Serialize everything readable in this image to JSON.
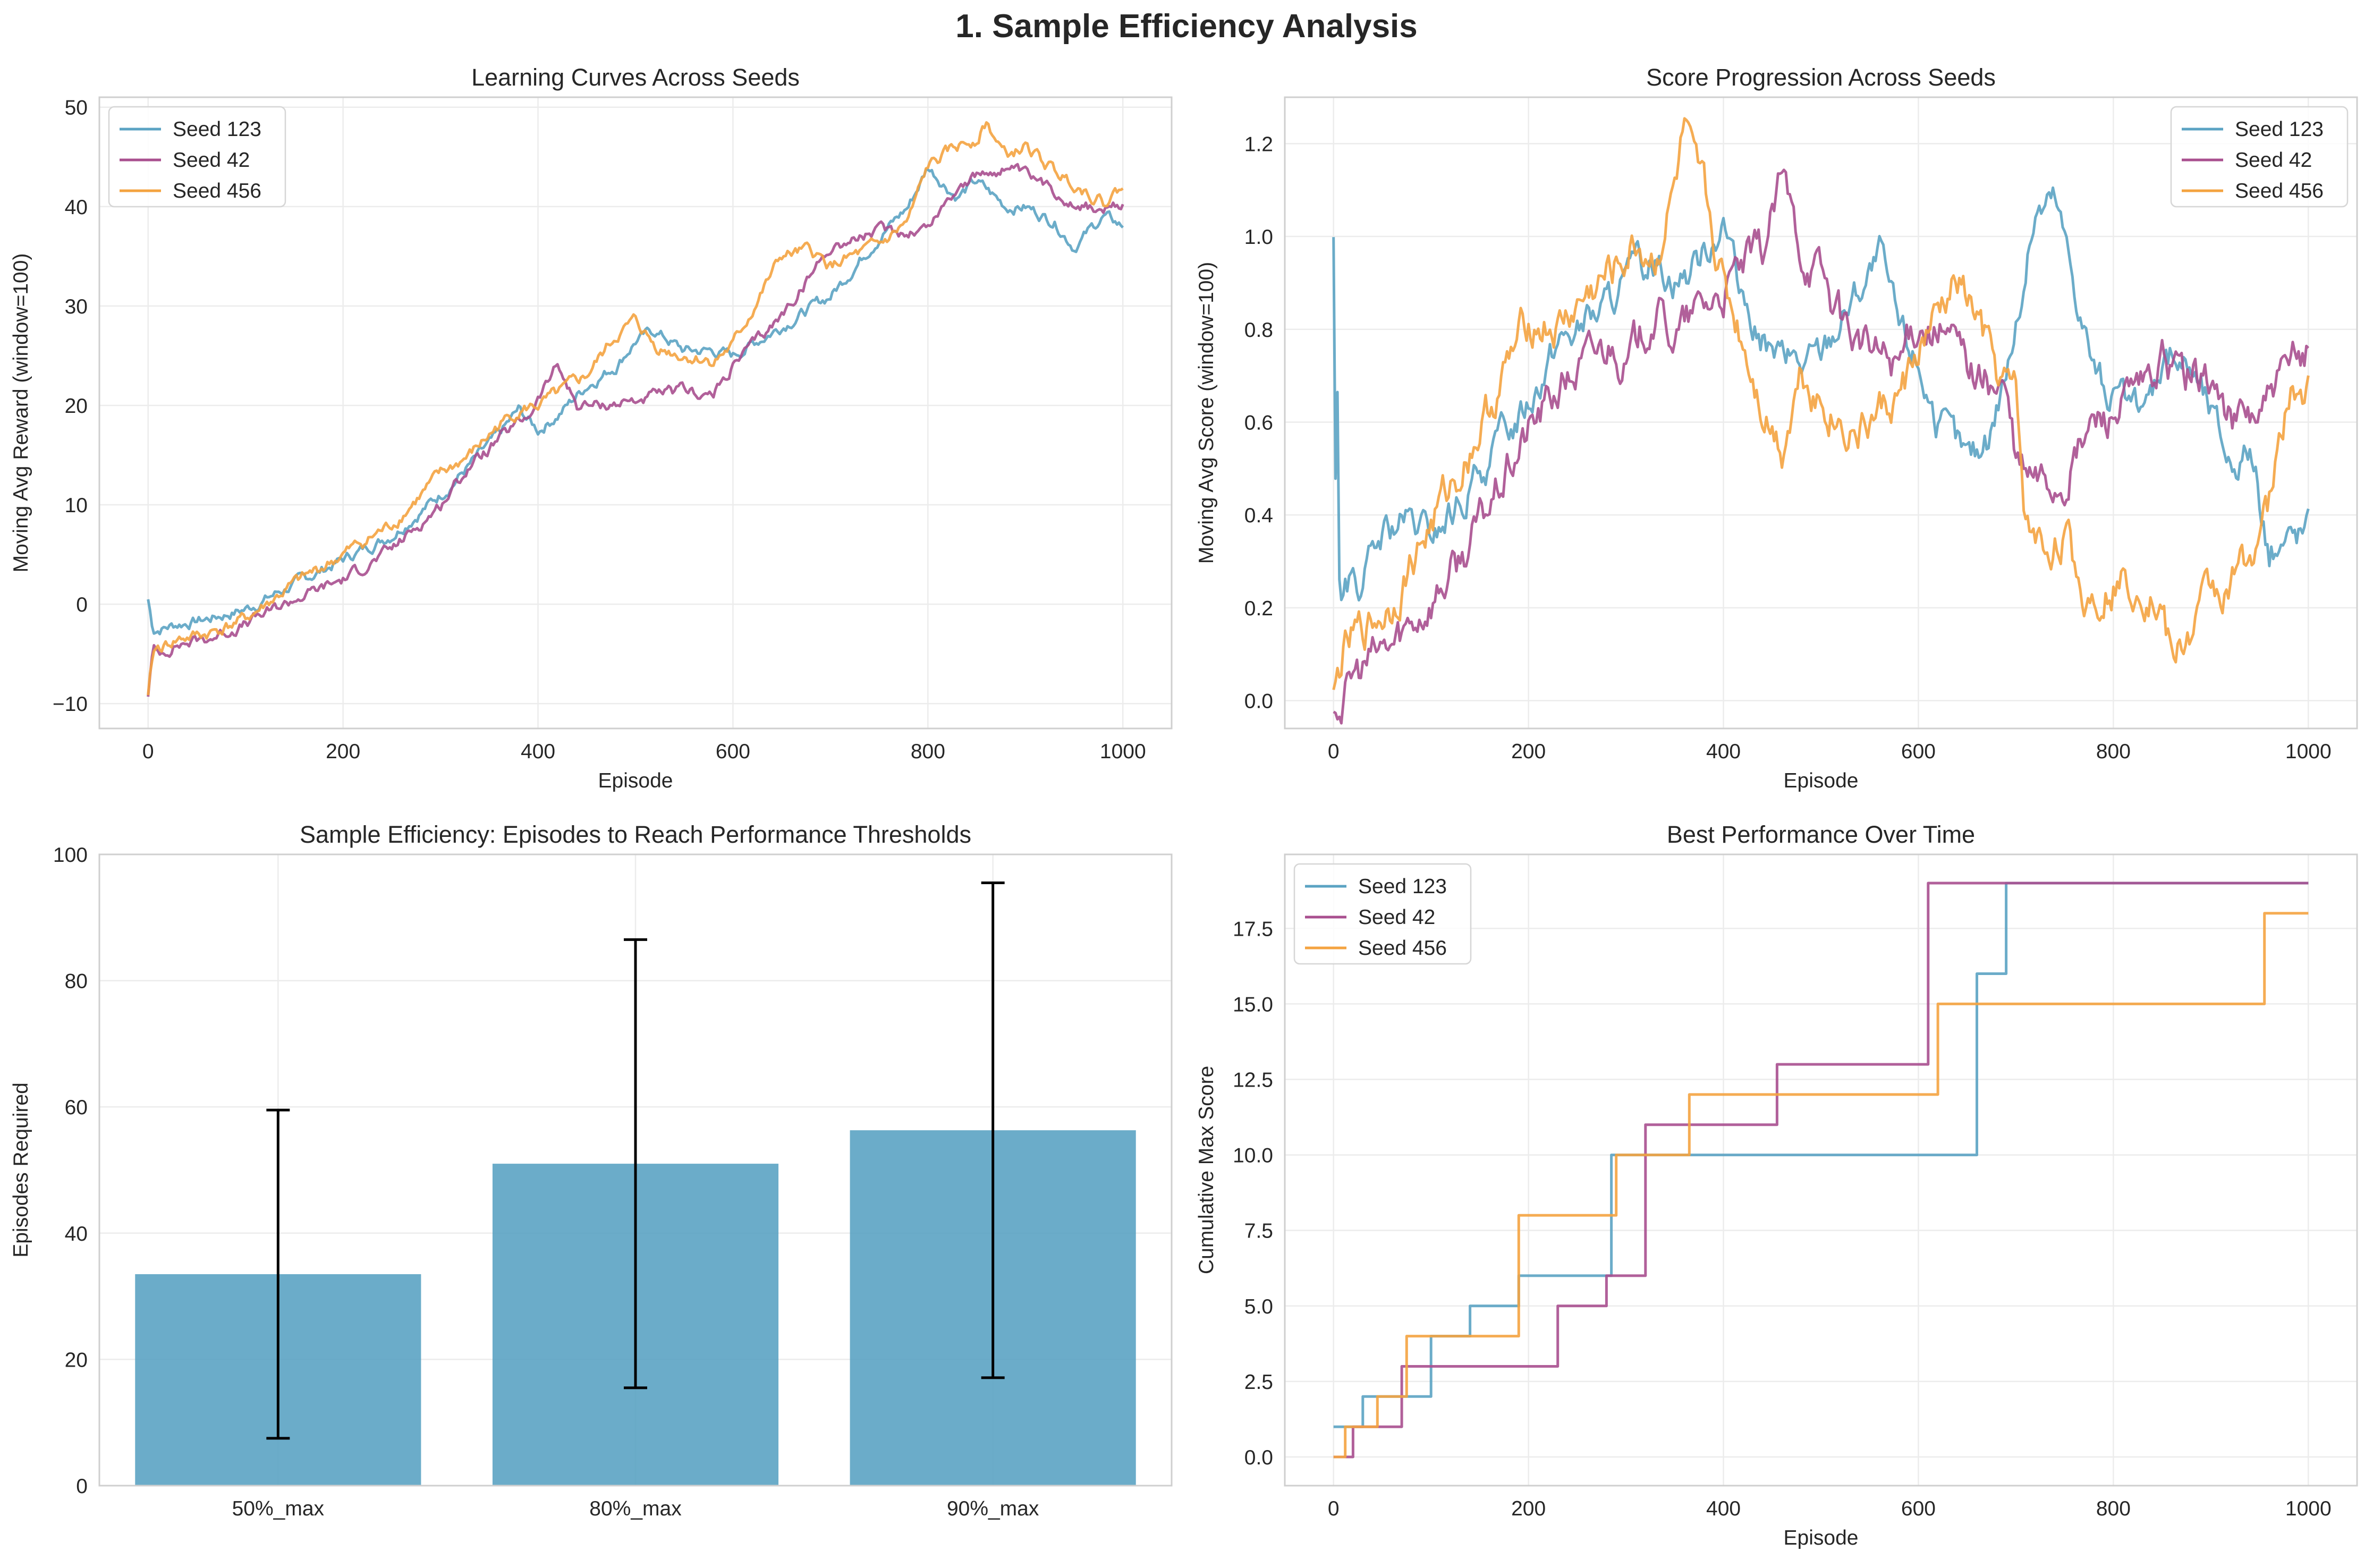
{
  "suptitle": "1. Sample Efficiency Analysis",
  "colors": {
    "seed123": "#5ba3c3",
    "seed42": "#a94f8f",
    "seed456": "#f4a340",
    "grid": "#ececec",
    "axis": "#cfcfcf",
    "text": "#262626",
    "bar": "#5ba3c3",
    "errorbar": "#000000"
  },
  "chart_data": [
    {
      "id": "learning",
      "type": "line",
      "title": "Learning Curves Across Seeds",
      "xlabel": "Episode",
      "ylabel": "Moving Avg Reward (window=100)",
      "xlim": [
        -50,
        1050
      ],
      "ylim": [
        -12.5,
        51
      ],
      "xticks": [
        0,
        200,
        400,
        600,
        800,
        1000
      ],
      "yticks": [
        -10,
        0,
        10,
        20,
        30,
        40,
        50
      ],
      "ytick_labels": [
        "−10",
        "0",
        "10",
        "20",
        "30",
        "40",
        "50"
      ],
      "grid": true,
      "legend": "upper-left",
      "series": [
        {
          "name": "Seed 123",
          "color_key": "seed123",
          "noise": 0.45,
          "x": [
            0,
            5,
            10,
            30,
            60,
            100,
            150,
            200,
            250,
            300,
            330,
            360,
            380,
            400,
            420,
            450,
            480,
            500,
            520,
            550,
            580,
            600,
            650,
            700,
            750,
            780,
            800,
            830,
            850,
            880,
            900,
            930,
            950,
            980,
            1000
          ],
          "y": [
            0.5,
            -2.5,
            -2.5,
            -2.0,
            -1.5,
            -0.5,
            2,
            4.5,
            7,
            11,
            14,
            17,
            19.5,
            17.5,
            19,
            22,
            24,
            26.5,
            27.5,
            25.5,
            25.5,
            25,
            28,
            31,
            37,
            40,
            44,
            41,
            42.5,
            40,
            40,
            38.5,
            36,
            39,
            38
          ]
        },
        {
          "name": "Seed 42",
          "color_key": "seed42",
          "noise": 0.45,
          "x": [
            0,
            5,
            10,
            30,
            60,
            100,
            150,
            200,
            250,
            300,
            330,
            360,
            390,
            420,
            440,
            460,
            500,
            550,
            580,
            600,
            650,
            700,
            750,
            780,
            800,
            830,
            850,
            880,
            900,
            930,
            950,
            980,
            1000
          ],
          "y": [
            -9,
            -4.5,
            -5,
            -4,
            -3.5,
            -2,
            0.5,
            2.5,
            5.5,
            10,
            14,
            16.5,
            19,
            24,
            20,
            20,
            20.5,
            21.5,
            21,
            24,
            29,
            36,
            37.5,
            37.5,
            38,
            42,
            43,
            44,
            43,
            41.5,
            40.5,
            39.5,
            40
          ]
        },
        {
          "name": "Seed 456",
          "color_key": "seed456",
          "noise": 0.5,
          "x": [
            0,
            5,
            10,
            30,
            60,
            100,
            150,
            200,
            250,
            300,
            330,
            360,
            380,
            400,
            420,
            450,
            480,
            500,
            520,
            550,
            580,
            600,
            650,
            680,
            700,
            750,
            780,
            800,
            830,
            850,
            860,
            880,
            900,
            930,
            950,
            980,
            1000
          ],
          "y": [
            -9.5,
            -5,
            -4.5,
            -3.5,
            -3,
            -1.5,
            2,
            5,
            8,
            13,
            15,
            18,
            19.5,
            20,
            21,
            23,
            27,
            28.5,
            26,
            25,
            24.5,
            26,
            35,
            35.5,
            34,
            36,
            38.5,
            44,
            46,
            47,
            48.5,
            45,
            46,
            43.5,
            42.5,
            40.5,
            42
          ]
        }
      ]
    },
    {
      "id": "score",
      "type": "line",
      "title": "Score Progression Across Seeds",
      "xlabel": "Episode",
      "ylabel": "Moving Avg Score (window=100)",
      "xlim": [
        -50,
        1050
      ],
      "ylim": [
        -0.06,
        1.3
      ],
      "xticks": [
        0,
        200,
        400,
        600,
        800,
        1000
      ],
      "yticks": [
        0.0,
        0.2,
        0.4,
        0.6,
        0.8,
        1.0,
        1.2
      ],
      "ytick_labels": [
        "0.0",
        "0.2",
        "0.4",
        "0.6",
        "0.8",
        "1.0",
        "1.2"
      ],
      "grid": true,
      "legend": "upper-right",
      "series": [
        {
          "name": "Seed 123",
          "color_key": "seed123",
          "noise": 0.03,
          "x": [
            0,
            2,
            4,
            6,
            10,
            20,
            30,
            50,
            70,
            100,
            130,
            160,
            200,
            230,
            250,
            280,
            300,
            330,
            350,
            370,
            400,
            420,
            450,
            480,
            500,
            530,
            560,
            580,
            600,
            620,
            650,
            670,
            700,
            720,
            740,
            760,
            780,
            800,
            830,
            850,
            880,
            900,
            920,
            940,
            960,
            980,
            1000
          ],
          "y": [
            1.0,
            0.5,
            0.67,
            0.25,
            0.22,
            0.26,
            0.25,
            0.35,
            0.38,
            0.35,
            0.42,
            0.52,
            0.65,
            0.78,
            0.8,
            0.85,
            0.9,
            0.95,
            0.92,
            0.93,
            1.05,
            0.83,
            0.75,
            0.72,
            0.75,
            0.86,
            0.95,
            0.8,
            0.73,
            0.6,
            0.52,
            0.55,
            0.8,
            1.05,
            1.08,
            0.9,
            0.72,
            0.65,
            0.6,
            0.75,
            0.72,
            0.62,
            0.52,
            0.55,
            0.32,
            0.35,
            0.37
          ]
        },
        {
          "name": "Seed 42",
          "color_key": "seed42",
          "noise": 0.035,
          "x": [
            0,
            10,
            20,
            40,
            60,
            80,
            100,
            130,
            160,
            200,
            230,
            260,
            290,
            300,
            330,
            350,
            380,
            400,
            420,
            440,
            460,
            480,
            500,
            520,
            550,
            580,
            600,
            630,
            660,
            690,
            700,
            720,
            750,
            780,
            800,
            830,
            850,
            880,
            900,
            920,
            950,
            980,
            1000
          ],
          "y": [
            0.0,
            0.0,
            0.05,
            0.09,
            0.12,
            0.17,
            0.22,
            0.3,
            0.42,
            0.58,
            0.67,
            0.73,
            0.78,
            0.72,
            0.84,
            0.78,
            0.85,
            0.88,
            0.93,
            0.96,
            1.12,
            0.97,
            0.92,
            0.82,
            0.75,
            0.73,
            0.82,
            0.78,
            0.7,
            0.66,
            0.5,
            0.47,
            0.47,
            0.6,
            0.62,
            0.66,
            0.72,
            0.7,
            0.69,
            0.6,
            0.62,
            0.7,
            0.76
          ]
        },
        {
          "name": "Seed 456",
          "color_key": "seed456",
          "noise": 0.035,
          "x": [
            0,
            10,
            20,
            40,
            60,
            80,
            100,
            130,
            160,
            200,
            230,
            260,
            290,
            310,
            330,
            350,
            360,
            370,
            380,
            400,
            420,
            440,
            460,
            480,
            500,
            520,
            540,
            560,
            580,
            600,
            620,
            640,
            660,
            680,
            700,
            710,
            730,
            750,
            770,
            790,
            800,
            830,
            850,
            860,
            880,
            900,
            920,
            940,
            960,
            980,
            1000
          ],
          "y": [
            0.0,
            0.1,
            0.13,
            0.17,
            0.21,
            0.3,
            0.38,
            0.5,
            0.63,
            0.82,
            0.8,
            0.87,
            0.93,
            0.98,
            0.95,
            1.1,
            1.22,
            1.12,
            1.08,
            0.9,
            0.78,
            0.64,
            0.55,
            0.72,
            0.65,
            0.6,
            0.58,
            0.62,
            0.65,
            0.75,
            0.82,
            0.9,
            0.82,
            0.7,
            0.65,
            0.38,
            0.32,
            0.36,
            0.22,
            0.25,
            0.26,
            0.26,
            0.2,
            0.08,
            0.15,
            0.24,
            0.24,
            0.32,
            0.42,
            0.66,
            0.66
          ]
        }
      ]
    },
    {
      "id": "bars",
      "type": "bar",
      "title": "Sample Efficiency: Episodes to Reach Performance Thresholds",
      "xlabel": "",
      "ylabel": "Episodes Required",
      "categories": [
        "50%_max",
        "80%_max",
        "90%_max"
      ],
      "values": [
        33.5,
        51.0,
        56.3
      ],
      "errors": [
        26.0,
        35.5,
        39.2
      ],
      "ylim": [
        0,
        100
      ],
      "yticks": [
        0,
        20,
        40,
        60,
        80,
        100
      ],
      "ytick_labels": [
        "0",
        "20",
        "40",
        "60",
        "80",
        "100"
      ],
      "grid": true
    },
    {
      "id": "best",
      "type": "line",
      "title": "Best Performance Over Time",
      "xlabel": "Episode",
      "ylabel": "Cumulative Max Score",
      "xlim": [
        -50,
        1050
      ],
      "ylim": [
        -0.95,
        19.95
      ],
      "xticks": [
        0,
        200,
        400,
        600,
        800,
        1000
      ],
      "yticks": [
        0.0,
        2.5,
        5.0,
        7.5,
        10.0,
        12.5,
        15.0,
        17.5
      ],
      "ytick_labels": [
        "0.0",
        "2.5",
        "5.0",
        "7.5",
        "10.0",
        "12.5",
        "15.0",
        "17.5"
      ],
      "grid": true,
      "legend": "upper-left",
      "step": true,
      "series": [
        {
          "name": "Seed 123",
          "color_key": "seed123",
          "x": [
            0,
            15,
            30,
            100,
            140,
            190,
            285,
            660,
            690,
            1000
          ],
          "y": [
            1,
            1,
            2,
            4,
            5,
            6,
            10,
            16,
            19,
            19
          ]
        },
        {
          "name": "Seed 42",
          "color_key": "seed42",
          "x": [
            0,
            20,
            30,
            70,
            230,
            280,
            320,
            455,
            610,
            615,
            1000
          ],
          "y": [
            0,
            1,
            1,
            3,
            5,
            6,
            11,
            13,
            19,
            19,
            19
          ]
        },
        {
          "name": "Seed 456",
          "color_key": "seed456",
          "x": [
            0,
            12,
            45,
            75,
            190,
            290,
            365,
            620,
            955,
            1000
          ],
          "y": [
            0,
            1,
            2,
            4,
            8,
            10,
            12,
            15,
            18,
            18
          ]
        }
      ]
    }
  ]
}
